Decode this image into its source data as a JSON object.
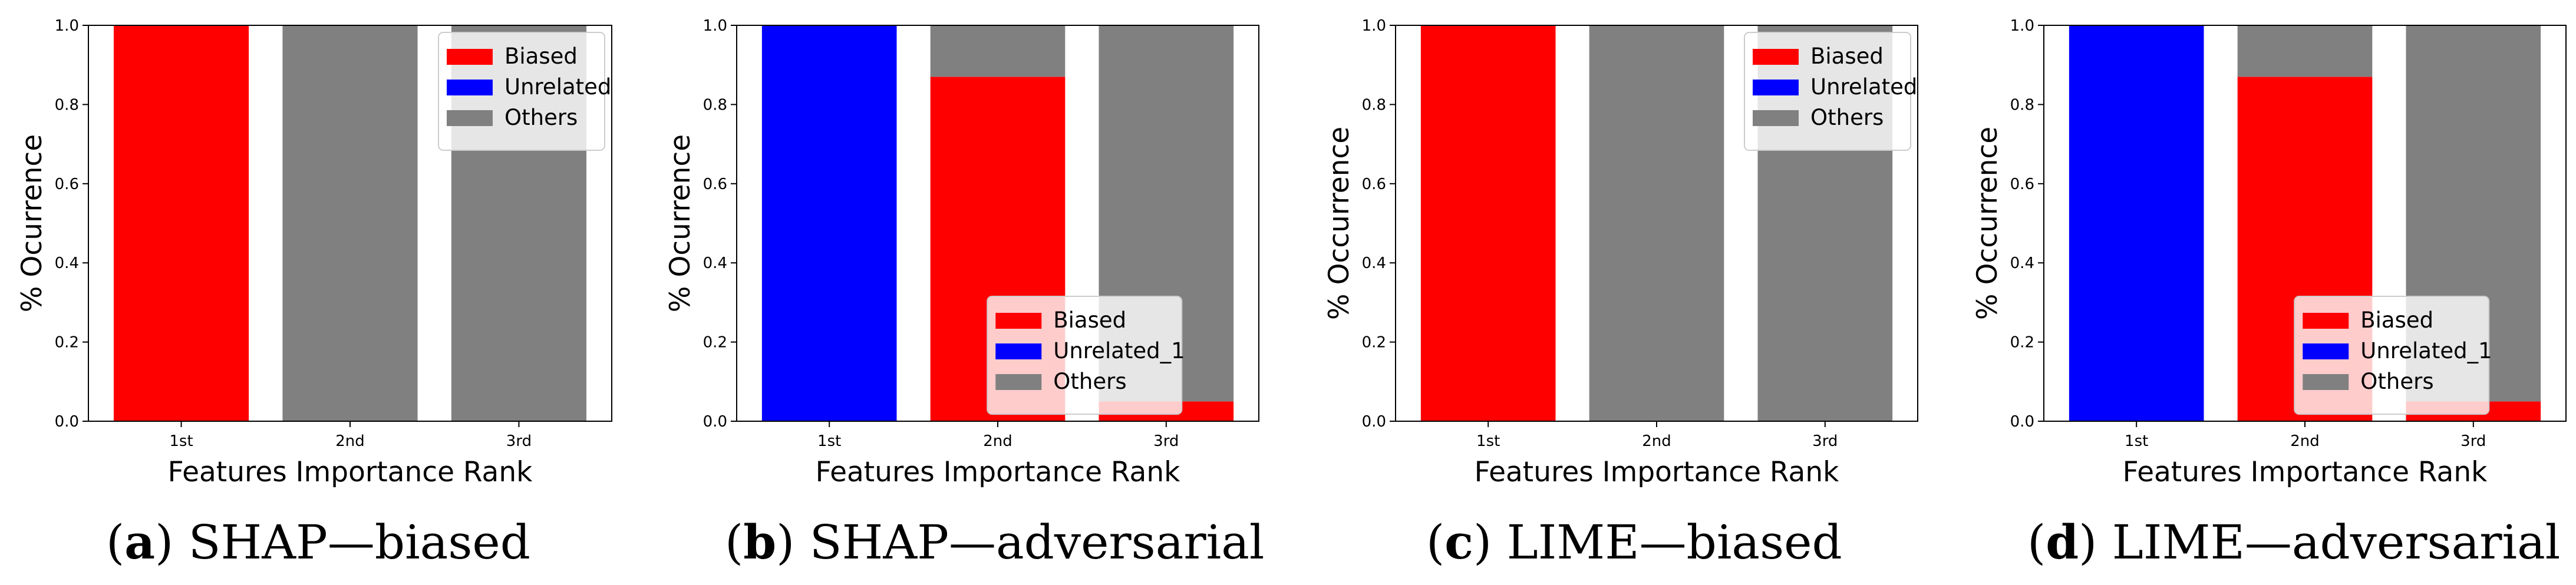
{
  "figure": {
    "colors": {
      "biased": "#ff0000",
      "unrelated": "#0000ff",
      "others": "#808080",
      "background": "#ffffff",
      "axis": "#000000"
    }
  },
  "chart_data": [
    {
      "type": "bar",
      "stacked": true,
      "caption_letter": "a",
      "caption_text": "SHAP—biased",
      "categories": [
        "1st",
        "2nd",
        "3rd"
      ],
      "series": [
        {
          "name": "Biased",
          "color": "#ff0000",
          "values": [
            1.0,
            0.0,
            0.0
          ]
        },
        {
          "name": "Unrelated",
          "color": "#0000ff",
          "values": [
            0.0,
            0.0,
            0.0
          ]
        },
        {
          "name": "Others",
          "color": "#808080",
          "values": [
            0.0,
            1.0,
            1.0
          ]
        }
      ],
      "xlabel": "Features Importance Rank",
      "ylabel": "% Ocurrence",
      "ylim": [
        0,
        1.0
      ],
      "yticks": [
        "0.0",
        "0.2",
        "0.4",
        "0.6",
        "0.8",
        "1.0"
      ],
      "legend": {
        "position": "top-right",
        "labels": [
          "Biased",
          "Unrelated",
          "Others"
        ]
      }
    },
    {
      "type": "bar",
      "stacked": true,
      "caption_letter": "b",
      "caption_text": "SHAP—adversarial",
      "categories": [
        "1st",
        "2nd",
        "3rd"
      ],
      "series": [
        {
          "name": "Biased",
          "color": "#ff0000",
          "values": [
            0.0,
            0.87,
            0.05
          ]
        },
        {
          "name": "Unrelated_1",
          "color": "#0000ff",
          "values": [
            1.0,
            0.0,
            0.0
          ]
        },
        {
          "name": "Others",
          "color": "#808080",
          "values": [
            0.0,
            0.13,
            0.95
          ]
        }
      ],
      "xlabel": "Features Importance Rank",
      "ylabel": "% Ocurrence",
      "ylim": [
        0,
        1.0
      ],
      "yticks": [
        "0.0",
        "0.2",
        "0.4",
        "0.6",
        "0.8",
        "1.0"
      ],
      "legend": {
        "position": "bottom-center",
        "labels": [
          "Biased",
          "Unrelated_1",
          "Others"
        ]
      }
    },
    {
      "type": "bar",
      "stacked": true,
      "caption_letter": "c",
      "caption_text": "LIME—biased",
      "categories": [
        "1st",
        "2nd",
        "3rd"
      ],
      "series": [
        {
          "name": "Biased",
          "color": "#ff0000",
          "values": [
            1.0,
            0.0,
            0.0
          ]
        },
        {
          "name": "Unrelated",
          "color": "#0000ff",
          "values": [
            0.0,
            0.0,
            0.0
          ]
        },
        {
          "name": "Others",
          "color": "#808080",
          "values": [
            0.0,
            1.0,
            1.0
          ]
        }
      ],
      "xlabel": "Features Importance Rank",
      "ylabel": "% Occurrence",
      "ylim": [
        0,
        1.0
      ],
      "yticks": [
        "0.0",
        "0.2",
        "0.4",
        "0.6",
        "0.8",
        "1.0"
      ],
      "legend": {
        "position": "top-right",
        "labels": [
          "Biased",
          "Unrelated",
          "Others"
        ]
      }
    },
    {
      "type": "bar",
      "stacked": true,
      "caption_letter": "d",
      "caption_text": "LIME—adversarial",
      "categories": [
        "1st",
        "2nd",
        "3rd"
      ],
      "series": [
        {
          "name": "Biased",
          "color": "#ff0000",
          "values": [
            0.0,
            0.87,
            0.05
          ]
        },
        {
          "name": "Unrelated_1",
          "color": "#0000ff",
          "values": [
            1.0,
            0.0,
            0.0
          ]
        },
        {
          "name": "Others",
          "color": "#808080",
          "values": [
            0.0,
            0.13,
            0.95
          ]
        }
      ],
      "xlabel": "Features Importance Rank",
      "ylabel": "% Occurrence",
      "ylim": [
        0,
        1.0
      ],
      "yticks": [
        "0.0",
        "0.2",
        "0.4",
        "0.6",
        "0.8",
        "1.0"
      ],
      "legend": {
        "position": "bottom-center",
        "labels": [
          "Biased",
          "Unrelated_1",
          "Others"
        ]
      }
    }
  ]
}
